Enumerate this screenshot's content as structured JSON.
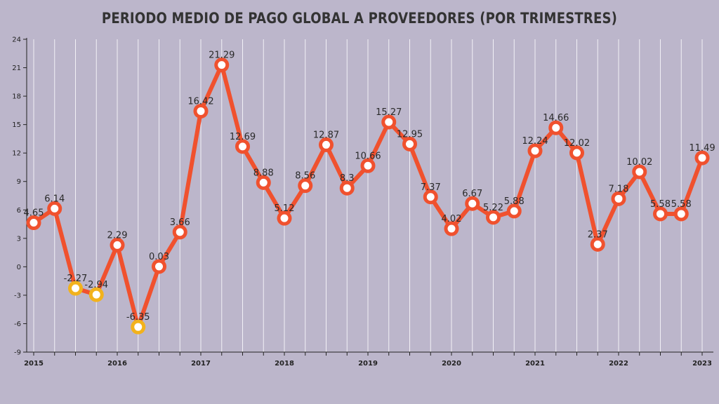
{
  "chart_data": {
    "type": "line",
    "title": "PERIODO MEDIO DE PAGO GLOBAL A PROVEEDORES (POR TRIMESTRES)",
    "xlabel": "",
    "ylabel": "",
    "ylim": [
      -9,
      24
    ],
    "yticks": [
      -9,
      -6,
      -3,
      0,
      3,
      6,
      9,
      12,
      15,
      18,
      21,
      24
    ],
    "xtick_labels": [
      "2015",
      "2016",
      "2017",
      "2018",
      "2019",
      "2020",
      "2021",
      "2022",
      "2023"
    ],
    "xtick_indices": [
      0,
      4,
      8,
      12,
      16,
      20,
      24,
      28,
      32
    ],
    "grid": "vertical",
    "colors": {
      "line": "#f0512e",
      "positive_marker": "#f0512e",
      "negative_marker": "#f2b21c",
      "marker_fill": "#ffffff",
      "background": "#bcb6cb",
      "grid": "#f2f0f6"
    },
    "values": [
      4.65,
      6.14,
      -2.27,
      -2.94,
      2.29,
      -6.35,
      0.03,
      3.66,
      16.42,
      21.29,
      12.69,
      8.88,
      5.12,
      8.56,
      12.87,
      8.3,
      10.66,
      15.27,
      12.95,
      7.37,
      4.02,
      6.67,
      5.22,
      5.88,
      12.24,
      14.66,
      12.02,
      2.37,
      7.18,
      10.02,
      5.58,
      5.58,
      11.49
    ],
    "labels": [
      "4.65",
      "6.14",
      "-2.27",
      "-2.94",
      "2.29",
      "-6.35",
      "0.03",
      "3.66",
      "16.42",
      "21.29",
      "12.69",
      "8.88",
      "5.12",
      "8.56",
      "12.87",
      "8.3",
      "10.66",
      "15.27",
      "12.95",
      "7.37",
      "4.02",
      "6.67",
      "5.22",
      "5.88",
      "12.24",
      "14.66",
      "12.02",
      "2.37",
      "7.18",
      "10.02",
      "5.58",
      "5.58",
      "11.49"
    ]
  }
}
